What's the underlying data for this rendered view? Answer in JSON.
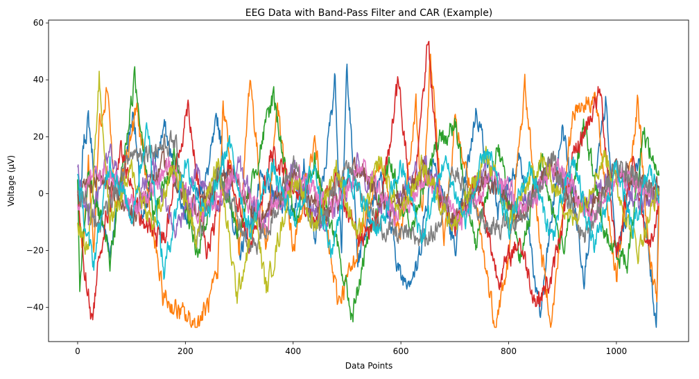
{
  "chart_data": {
    "type": "line",
    "title": "EEG Data with Band-Pass Filter and CAR (Example)",
    "xlabel": "Data Points",
    "ylabel": "Voltage (µV)",
    "xlim": [
      -54,
      1134
    ],
    "ylim": [
      -52,
      61
    ],
    "xticks": [
      0,
      200,
      400,
      600,
      800,
      1000
    ],
    "xtick_labels": [
      "0",
      "200",
      "400",
      "600",
      "800",
      "1000"
    ],
    "yticks": [
      -40,
      -20,
      0,
      20,
      40,
      60
    ],
    "ytick_labels": [
      "−40",
      "−20",
      "0",
      "20",
      "40",
      "60"
    ],
    "grid": false,
    "legend": "none",
    "num_points": 1080,
    "series": [
      {
        "color": "#1f77b4",
        "anchors": [
          [
            0,
            4
          ],
          [
            6,
            -5
          ],
          [
            10,
            17
          ],
          [
            20,
            26
          ],
          [
            40,
            -6
          ],
          [
            60,
            -20
          ],
          [
            104,
            30
          ],
          [
            120,
            -12
          ],
          [
            160,
            24
          ],
          [
            200,
            -8
          ],
          [
            240,
            6
          ],
          [
            260,
            26
          ],
          [
            300,
            -22
          ],
          [
            340,
            4
          ],
          [
            400,
            -6
          ],
          [
            420,
            12
          ],
          [
            440,
            -18
          ],
          [
            460,
            10
          ],
          [
            478,
            41
          ],
          [
            490,
            -20
          ],
          [
            500,
            47
          ],
          [
            520,
            -24
          ],
          [
            560,
            8
          ],
          [
            600,
            -30
          ],
          [
            630,
            -27
          ],
          [
            660,
            14
          ],
          [
            700,
            -20
          ],
          [
            740,
            30
          ],
          [
            780,
            -6
          ],
          [
            820,
            14
          ],
          [
            858,
            -44
          ],
          [
            900,
            24
          ],
          [
            940,
            -28
          ],
          [
            980,
            32
          ],
          [
            1000,
            -22
          ],
          [
            1040,
            12
          ],
          [
            1074,
            -46
          ],
          [
            1079,
            4
          ]
        ]
      },
      {
        "color": "#ff7f0e",
        "anchors": [
          [
            0,
            2
          ],
          [
            10,
            -22
          ],
          [
            20,
            12
          ],
          [
            30,
            -20
          ],
          [
            40,
            24
          ],
          [
            56,
            39
          ],
          [
            70,
            -6
          ],
          [
            110,
            30
          ],
          [
            140,
            -14
          ],
          [
            158,
            -36
          ],
          [
            190,
            -42
          ],
          [
            220,
            -46
          ],
          [
            240,
            -40
          ],
          [
            260,
            -30
          ],
          [
            270,
            34
          ],
          [
            300,
            -20
          ],
          [
            320,
            42
          ],
          [
            350,
            -20
          ],
          [
            370,
            32
          ],
          [
            400,
            -20
          ],
          [
            440,
            18
          ],
          [
            470,
            -24
          ],
          [
            483,
            -38
          ],
          [
            510,
            -26
          ],
          [
            560,
            12
          ],
          [
            600,
            -16
          ],
          [
            628,
            31
          ],
          [
            640,
            -10
          ],
          [
            655,
            49
          ],
          [
            680,
            -14
          ],
          [
            700,
            24
          ],
          [
            740,
            -6
          ],
          [
            775,
            -46
          ],
          [
            800,
            -24
          ],
          [
            830,
            38
          ],
          [
            860,
            -20
          ],
          [
            880,
            -45
          ],
          [
            920,
            30
          ],
          [
            960,
            34
          ],
          [
            1000,
            -30
          ],
          [
            1040,
            33
          ],
          [
            1060,
            -20
          ],
          [
            1075,
            -40
          ],
          [
            1079,
            -2
          ]
        ]
      },
      {
        "color": "#2ca02c",
        "anchors": [
          [
            0,
            2
          ],
          [
            4,
            -35
          ],
          [
            20,
            8
          ],
          [
            60,
            -24
          ],
          [
            106,
            41
          ],
          [
            140,
            -8
          ],
          [
            180,
            14
          ],
          [
            220,
            -22
          ],
          [
            260,
            8
          ],
          [
            300,
            -14
          ],
          [
            364,
            35
          ],
          [
            400,
            -10
          ],
          [
            440,
            12
          ],
          [
            480,
            -18
          ],
          [
            510,
            -43
          ],
          [
            540,
            -16
          ],
          [
            580,
            10
          ],
          [
            620,
            -14
          ],
          [
            660,
            16
          ],
          [
            700,
            24
          ],
          [
            740,
            -18
          ],
          [
            780,
            18
          ],
          [
            820,
            -24
          ],
          [
            860,
            12
          ],
          [
            900,
            -20
          ],
          [
            940,
            24
          ],
          [
            980,
            -16
          ],
          [
            1020,
            -24
          ],
          [
            1050,
            22
          ],
          [
            1079,
            6
          ]
        ]
      },
      {
        "color": "#d62728",
        "anchors": [
          [
            0,
            -1
          ],
          [
            10,
            -22
          ],
          [
            27,
            -46
          ],
          [
            40,
            -20
          ],
          [
            80,
            14
          ],
          [
            120,
            -10
          ],
          [
            160,
            -16
          ],
          [
            205,
            32
          ],
          [
            240,
            -22
          ],
          [
            280,
            10
          ],
          [
            320,
            -18
          ],
          [
            360,
            14
          ],
          [
            400,
            2
          ],
          [
            440,
            -10
          ],
          [
            480,
            6
          ],
          [
            520,
            -16
          ],
          [
            560,
            -8
          ],
          [
            596,
            40
          ],
          [
            620,
            -6
          ],
          [
            651,
            55
          ],
          [
            670,
            0
          ],
          [
            700,
            -12
          ],
          [
            740,
            6
          ],
          [
            780,
            -30
          ],
          [
            820,
            -16
          ],
          [
            850,
            -38
          ],
          [
            880,
            -30
          ],
          [
            920,
            12
          ],
          [
            970,
            36
          ],
          [
            1000,
            -22
          ],
          [
            1030,
            12
          ],
          [
            1060,
            -20
          ],
          [
            1079,
            -7
          ]
        ]
      },
      {
        "color": "#9467bd",
        "anchors": [
          [
            0,
            8
          ],
          [
            20,
            -10
          ],
          [
            60,
            14
          ],
          [
            100,
            -8
          ],
          [
            140,
            12
          ],
          [
            180,
            -14
          ],
          [
            220,
            8
          ],
          [
            260,
            -6
          ],
          [
            300,
            10
          ],
          [
            340,
            -10
          ],
          [
            400,
            8
          ],
          [
            460,
            -12
          ],
          [
            520,
            10
          ],
          [
            580,
            -8
          ],
          [
            640,
            12
          ],
          [
            700,
            -10
          ],
          [
            760,
            8
          ],
          [
            820,
            -6
          ],
          [
            880,
            10
          ],
          [
            940,
            -4
          ],
          [
            1000,
            8
          ],
          [
            1040,
            -4
          ],
          [
            1079,
            2
          ]
        ]
      },
      {
        "color": "#8c564b",
        "anchors": [
          [
            0,
            0
          ],
          [
            40,
            6
          ],
          [
            100,
            -8
          ],
          [
            160,
            10
          ],
          [
            220,
            -6
          ],
          [
            280,
            8
          ],
          [
            340,
            -10
          ],
          [
            400,
            6
          ],
          [
            460,
            -8
          ],
          [
            520,
            10
          ],
          [
            580,
            -6
          ],
          [
            640,
            8
          ],
          [
            700,
            -10
          ],
          [
            760,
            6
          ],
          [
            820,
            -8
          ],
          [
            880,
            10
          ],
          [
            940,
            -6
          ],
          [
            1000,
            8
          ],
          [
            1079,
            0
          ]
        ]
      },
      {
        "color": "#e377c2",
        "anchors": [
          [
            0,
            -2
          ],
          [
            50,
            8
          ],
          [
            110,
            -6
          ],
          [
            170,
            10
          ],
          [
            230,
            -8
          ],
          [
            290,
            6
          ],
          [
            350,
            -10
          ],
          [
            410,
            8
          ],
          [
            470,
            -6
          ],
          [
            530,
            10
          ],
          [
            590,
            -8
          ],
          [
            650,
            6
          ],
          [
            710,
            -10
          ],
          [
            770,
            8
          ],
          [
            830,
            -6
          ],
          [
            890,
            10
          ],
          [
            950,
            -8
          ],
          [
            1010,
            6
          ],
          [
            1079,
            -2
          ]
        ]
      },
      {
        "color": "#7f7f7f",
        "anchors": [
          [
            0,
            2
          ],
          [
            40,
            -12
          ],
          [
            100,
            14
          ],
          [
            180,
            18
          ],
          [
            220,
            -18
          ],
          [
            260,
            8
          ],
          [
            320,
            -20
          ],
          [
            360,
            -10
          ],
          [
            400,
            12
          ],
          [
            440,
            -14
          ],
          [
            500,
            10
          ],
          [
            560,
            -12
          ],
          [
            620,
            -16
          ],
          [
            660,
            -14
          ],
          [
            700,
            8
          ],
          [
            760,
            -12
          ],
          [
            820,
            -10
          ],
          [
            880,
            12
          ],
          [
            940,
            -16
          ],
          [
            1000,
            10
          ],
          [
            1079,
            0
          ]
        ]
      },
      {
        "color": "#bcbd22",
        "anchors": [
          [
            0,
            -10
          ],
          [
            20,
            -20
          ],
          [
            40,
            41
          ],
          [
            60,
            -10
          ],
          [
            100,
            8
          ],
          [
            140,
            -12
          ],
          [
            180,
            10
          ],
          [
            220,
            -14
          ],
          [
            260,
            12
          ],
          [
            296,
            -36
          ],
          [
            330,
            -8
          ],
          [
            350,
            -34
          ],
          [
            400,
            6
          ],
          [
            440,
            -12
          ],
          [
            480,
            10
          ],
          [
            520,
            -16
          ],
          [
            560,
            12
          ],
          [
            600,
            -8
          ],
          [
            640,
            10
          ],
          [
            700,
            -12
          ],
          [
            760,
            14
          ],
          [
            800,
            -10
          ],
          [
            860,
            12
          ],
          [
            920,
            -10
          ],
          [
            980,
            14
          ],
          [
            1040,
            -20
          ],
          [
            1079,
            2
          ]
        ]
      },
      {
        "color": "#17becf",
        "anchors": [
          [
            0,
            6
          ],
          [
            18,
            -16
          ],
          [
            30,
            -24
          ],
          [
            60,
            12
          ],
          [
            100,
            -8
          ],
          [
            130,
            24
          ],
          [
            160,
            -28
          ],
          [
            200,
            12
          ],
          [
            240,
            -10
          ],
          [
            280,
            18
          ],
          [
            320,
            -14
          ],
          [
            360,
            10
          ],
          [
            400,
            -10
          ],
          [
            440,
            10
          ],
          [
            470,
            -22
          ],
          [
            500,
            8
          ],
          [
            560,
            -14
          ],
          [
            600,
            10
          ],
          [
            640,
            -16
          ],
          [
            680,
            12
          ],
          [
            720,
            -10
          ],
          [
            760,
            16
          ],
          [
            800,
            -12
          ],
          [
            840,
            10
          ],
          [
            880,
            -16
          ],
          [
            920,
            12
          ],
          [
            960,
            -20
          ],
          [
            1000,
            10
          ],
          [
            1030,
            -14
          ],
          [
            1060,
            8
          ],
          [
            1079,
            2
          ]
        ]
      }
    ]
  }
}
